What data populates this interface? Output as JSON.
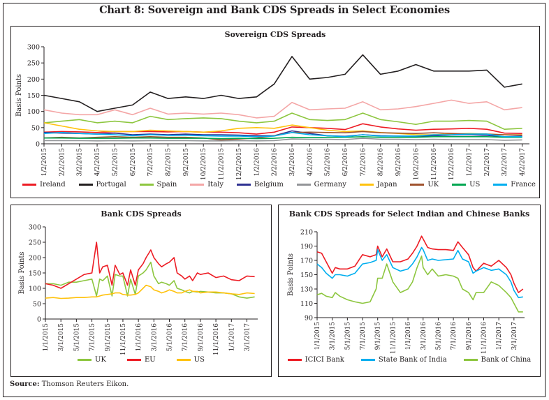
{
  "page": {
    "title": "Chart 8: Sovereign and Bank CDS Spreads in Select Economies",
    "source_label": "Source:",
    "source_text": "Thomson Reuters Eikon."
  },
  "chart_data": [
    {
      "id": "sovereign",
      "type": "line",
      "title": "Sovereign CDS Spreads",
      "xlabel": "",
      "ylabel": "Basis Points",
      "ylim": [
        0,
        300
      ],
      "yticks": [
        0,
        50,
        100,
        150,
        200,
        250,
        300
      ],
      "grid": false,
      "legend": "bottom",
      "x": [
        "1/2/2015",
        "2/2/2015",
        "3/2/2015",
        "4/2/2015",
        "5/2/2015",
        "6/2/2015",
        "7/2/2015",
        "8/2/2015",
        "9/2/2015",
        "10/2/2015",
        "11/2/2015",
        "12/2/2015",
        "1/2/2016",
        "2/2/2016",
        "3/2/2016",
        "4/2/2016",
        "5/2/2016",
        "6/2/2016",
        "7/2/2016",
        "8/2/2016",
        "9/2/2016",
        "10/2/2016",
        "11/2/2016",
        "12/2/2016",
        "1/2/2017",
        "2/2/2017",
        "3/2/2017",
        "4/2/2017"
      ],
      "series": [
        {
          "name": "Ireland",
          "color": "#ed1c24",
          "values": [
            36,
            38,
            37,
            35,
            38,
            38,
            38,
            37,
            38,
            36,
            36,
            34,
            30,
            36,
            52,
            50,
            48,
            44,
            62,
            52,
            46,
            42,
            45,
            46,
            48,
            45,
            33,
            32
          ]
        },
        {
          "name": "Portugal",
          "color": "#231f20",
          "values": [
            150,
            140,
            130,
            100,
            110,
            120,
            160,
            140,
            145,
            140,
            150,
            140,
            145,
            185,
            270,
            200,
            205,
            215,
            275,
            215,
            225,
            245,
            225,
            225,
            225,
            228,
            175,
            185
          ]
        },
        {
          "name": "Spain",
          "color": "#8dc63f",
          "values": [
            65,
            70,
            75,
            65,
            70,
            65,
            85,
            75,
            78,
            80,
            78,
            70,
            65,
            70,
            95,
            75,
            72,
            75,
            95,
            75,
            68,
            60,
            70,
            70,
            72,
            70,
            45,
            48
          ]
        },
        {
          "name": "Italy",
          "color": "#f4a6a6",
          "values": [
            105,
            95,
            90,
            90,
            105,
            90,
            110,
            92,
            95,
            92,
            95,
            90,
            80,
            85,
            128,
            105,
            108,
            110,
            130,
            105,
            108,
            115,
            125,
            135,
            125,
            130,
            105,
            112
          ]
        },
        {
          "name": "Belgium",
          "color": "#2e3192",
          "values": [
            35,
            33,
            32,
            30,
            33,
            28,
            30,
            28,
            30,
            28,
            28,
            27,
            25,
            25,
            40,
            32,
            25,
            23,
            28,
            25,
            24,
            23,
            25,
            27,
            28,
            26,
            22,
            24
          ]
        },
        {
          "name": "Germany",
          "color": "#939598",
          "values": [
            10,
            10,
            10,
            9,
            10,
            9,
            10,
            10,
            10,
            9,
            9,
            10,
            9,
            10,
            15,
            14,
            14,
            13,
            17,
            14,
            14,
            13,
            14,
            13,
            13,
            13,
            11,
            12
          ]
        },
        {
          "name": "Japan",
          "color": "#ffc20e",
          "values": [
            65,
            55,
            45,
            40,
            38,
            38,
            42,
            40,
            38,
            36,
            40,
            48,
            50,
            48,
            58,
            50,
            42,
            38,
            40,
            35,
            32,
            28,
            28,
            30,
            32,
            30,
            28,
            28
          ]
        },
        {
          "name": "UK",
          "color": "#a0522d",
          "values": [
            18,
            20,
            18,
            20,
            22,
            20,
            22,
            20,
            20,
            18,
            12,
            15,
            18,
            25,
            35,
            36,
            35,
            34,
            38,
            34,
            33,
            32,
            34,
            32,
            30,
            30,
            28,
            27
          ]
        },
        {
          "name": "US",
          "color": "#00a651",
          "values": [
            18,
            18,
            17,
            17,
            17,
            18,
            18,
            17,
            17,
            17,
            16,
            17,
            16,
            17,
            20,
            19,
            20,
            20,
            22,
            20,
            20,
            20,
            22,
            22,
            22,
            22,
            20,
            20
          ]
        },
        {
          "name": "France",
          "color": "#00aeef",
          "values": [
            32,
            35,
            32,
            30,
            28,
            25,
            28,
            26,
            26,
            25,
            24,
            24,
            22,
            24,
            35,
            28,
            25,
            22,
            28,
            24,
            24,
            24,
            28,
            28,
            30,
            30,
            22,
            22
          ]
        }
      ]
    },
    {
      "id": "bank",
      "type": "line",
      "title": "Bank CDS Spreads",
      "xlabel": "",
      "ylabel": "Basis Points",
      "ylim": [
        0,
        300
      ],
      "yticks": [
        0,
        50,
        100,
        150,
        200,
        250,
        300
      ],
      "grid": false,
      "legend": "bottom",
      "x": [
        "1/1/2015",
        "3/1/2015",
        "5/1/2015",
        "7/1/2015",
        "9/1/2015",
        "11/1/2015",
        "1/1/2016",
        "3/1/2016",
        "5/1/2016",
        "7/1/2016",
        "9/1/2016",
        "11/1/2016",
        "1/1/2017",
        "3/1/2017"
      ],
      "x_points": [
        0,
        0.5,
        1,
        1.5,
        2,
        2.5,
        3,
        3.3,
        3.5,
        3.7,
        4,
        4.3,
        4.5,
        4.8,
        5,
        5.3,
        5.5,
        5.8,
        6,
        6.3,
        6.5,
        6.8,
        7,
        7.3,
        7.5,
        7.8,
        8,
        8.3,
        8.5,
        8.8,
        9,
        9.3,
        9.5,
        9.8,
        10,
        10.5,
        11,
        11.5,
        12,
        12.5,
        13,
        13.5
      ],
      "series": [
        {
          "name": "UK",
          "color": "#8dc63f",
          "values": [
            115,
            115,
            110,
            120,
            120,
            125,
            130,
            75,
            130,
            125,
            140,
            75,
            145,
            140,
            140,
            75,
            130,
            80,
            140,
            150,
            160,
            185,
            140,
            115,
            120,
            115,
            110,
            125,
            100,
            95,
            90,
            85,
            90,
            88,
            90,
            88,
            85,
            85,
            82,
            72,
            68,
            72
          ]
        },
        {
          "name": "EU",
          "color": "#ed1c24",
          "values": [
            115,
            110,
            100,
            115,
            130,
            145,
            150,
            250,
            150,
            170,
            175,
            110,
            175,
            145,
            150,
            110,
            160,
            110,
            160,
            180,
            200,
            225,
            200,
            180,
            170,
            180,
            185,
            200,
            150,
            140,
            130,
            140,
            125,
            150,
            145,
            150,
            135,
            140,
            128,
            125,
            140,
            138
          ]
        },
        {
          "name": "US",
          "color": "#ffc20e",
          "values": [
            68,
            70,
            67,
            68,
            70,
            70,
            72,
            72,
            75,
            78,
            80,
            82,
            85,
            85,
            80,
            78,
            78,
            80,
            85,
            100,
            110,
            105,
            95,
            90,
            85,
            90,
            95,
            90,
            85,
            85,
            90,
            95,
            90,
            90,
            85,
            88,
            88,
            85,
            82,
            80,
            85,
            83
          ]
        }
      ]
    },
    {
      "id": "indian-chinese",
      "type": "line",
      "title": "Bank CDS Spreads for Select Indian and Chinese Banks",
      "xlabel": "",
      "ylabel": "Basis Points",
      "ylim": [
        90,
        210
      ],
      "yticks": [
        90,
        110,
        130,
        150,
        170,
        190,
        210
      ],
      "grid": false,
      "legend": "bottom",
      "x": [
        "1/1/2015",
        "3/1/2015",
        "5/1/2015",
        "7/1/2015",
        "9/1/2015",
        "11/1/2015",
        "1/1/2016",
        "3/1/2016",
        "5/1/2016",
        "7/1/2016",
        "9/1/2016",
        "11/1/2016",
        "1/1/2017",
        "3/1/2017"
      ],
      "x_points": [
        0,
        0.3,
        0.6,
        1,
        1.2,
        1.5,
        2,
        2.5,
        3,
        3.5,
        3.9,
        4,
        4.3,
        4.6,
        5,
        5.5,
        6,
        6.3,
        6.6,
        6.9,
        7,
        7.3,
        7.6,
        8,
        8.5,
        9,
        9.3,
        9.6,
        10,
        10.3,
        10.5,
        11,
        11.5,
        12,
        12.5,
        12.8,
        13,
        13.3,
        13.6
      ],
      "series": [
        {
          "name": "ICICI Bank",
          "color": "#ed1c24",
          "values": [
            182,
            180,
            168,
            152,
            160,
            158,
            158,
            162,
            178,
            175,
            178,
            190,
            175,
            186,
            168,
            168,
            172,
            180,
            190,
            204,
            200,
            188,
            186,
            185,
            185,
            184,
            196,
            188,
            178,
            160,
            155,
            166,
            162,
            170,
            160,
            150,
            138,
            125,
            130
          ]
        },
        {
          "name": "State Bank of India",
          "color": "#00aeef",
          "values": [
            165,
            160,
            152,
            145,
            150,
            150,
            148,
            152,
            165,
            167,
            170,
            185,
            170,
            178,
            160,
            155,
            158,
            165,
            175,
            188,
            185,
            170,
            172,
            170,
            171,
            172,
            184,
            172,
            168,
            152,
            155,
            160,
            156,
            158,
            150,
            140,
            128,
            118,
            119
          ]
        },
        {
          "name": "Bank of China",
          "color": "#8dc63f",
          "values": [
            122,
            124,
            120,
            118,
            125,
            120,
            115,
            112,
            110,
            112,
            130,
            145,
            145,
            165,
            140,
            125,
            130,
            140,
            160,
            176,
            160,
            150,
            158,
            148,
            150,
            148,
            145,
            130,
            125,
            115,
            125,
            125,
            140,
            135,
            125,
            118,
            110,
            98,
            98
          ]
        }
      ]
    }
  ]
}
